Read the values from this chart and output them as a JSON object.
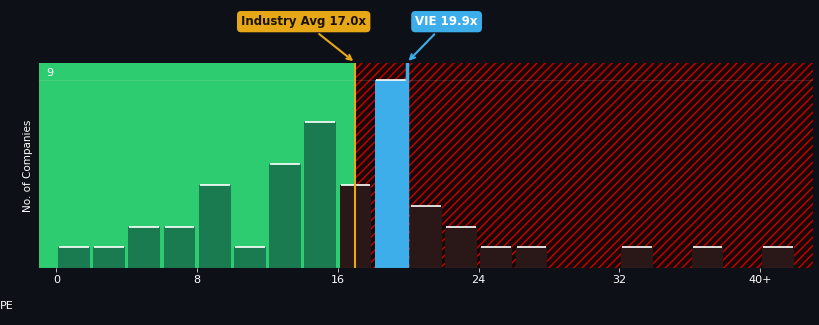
{
  "background_color": "#0d1117",
  "plot_bg_left": "#2ecc71",
  "plot_bg_right_dark": "#180808",
  "bar_color_left": "#1a7a50",
  "bar_color_right": "#2a1818",
  "bar_color_vie": "#3daee9",
  "industry_line_color": "#e6a817",
  "vie_line_color": "#3daee9",
  "industry_avg": 17.0,
  "vie_value": 19.9,
  "ylabel": "No. of Companies",
  "xlabel_label": "PE",
  "xtick_positions": [
    0,
    8,
    16,
    24,
    32,
    40
  ],
  "xtick_labels": [
    "0",
    "8",
    "16",
    "24",
    "32",
    "40+"
  ],
  "ytick_max": 9,
  "industry_label": "Industry Avg 17.0x",
  "vie_label": "VIE 19.9x",
  "industry_box_color": "#e6a817",
  "vie_box_color": "#3daee9",
  "bar_width": 1.8,
  "bar_centers": [
    1,
    3,
    5,
    7,
    9,
    11,
    13,
    15,
    17,
    19,
    21,
    23,
    25,
    27,
    29,
    31,
    33,
    35,
    37,
    39,
    41
  ],
  "bar_heights": [
    1,
    1,
    2,
    2,
    4,
    1,
    5,
    7,
    4,
    9,
    3,
    2,
    1,
    1,
    0,
    0,
    1,
    0,
    1,
    0,
    1
  ],
  "hatch_color": "#cc0000",
  "text_color": "#ffffff",
  "xlim_min": -1,
  "xlim_max": 43,
  "ylim_max": 9.8
}
